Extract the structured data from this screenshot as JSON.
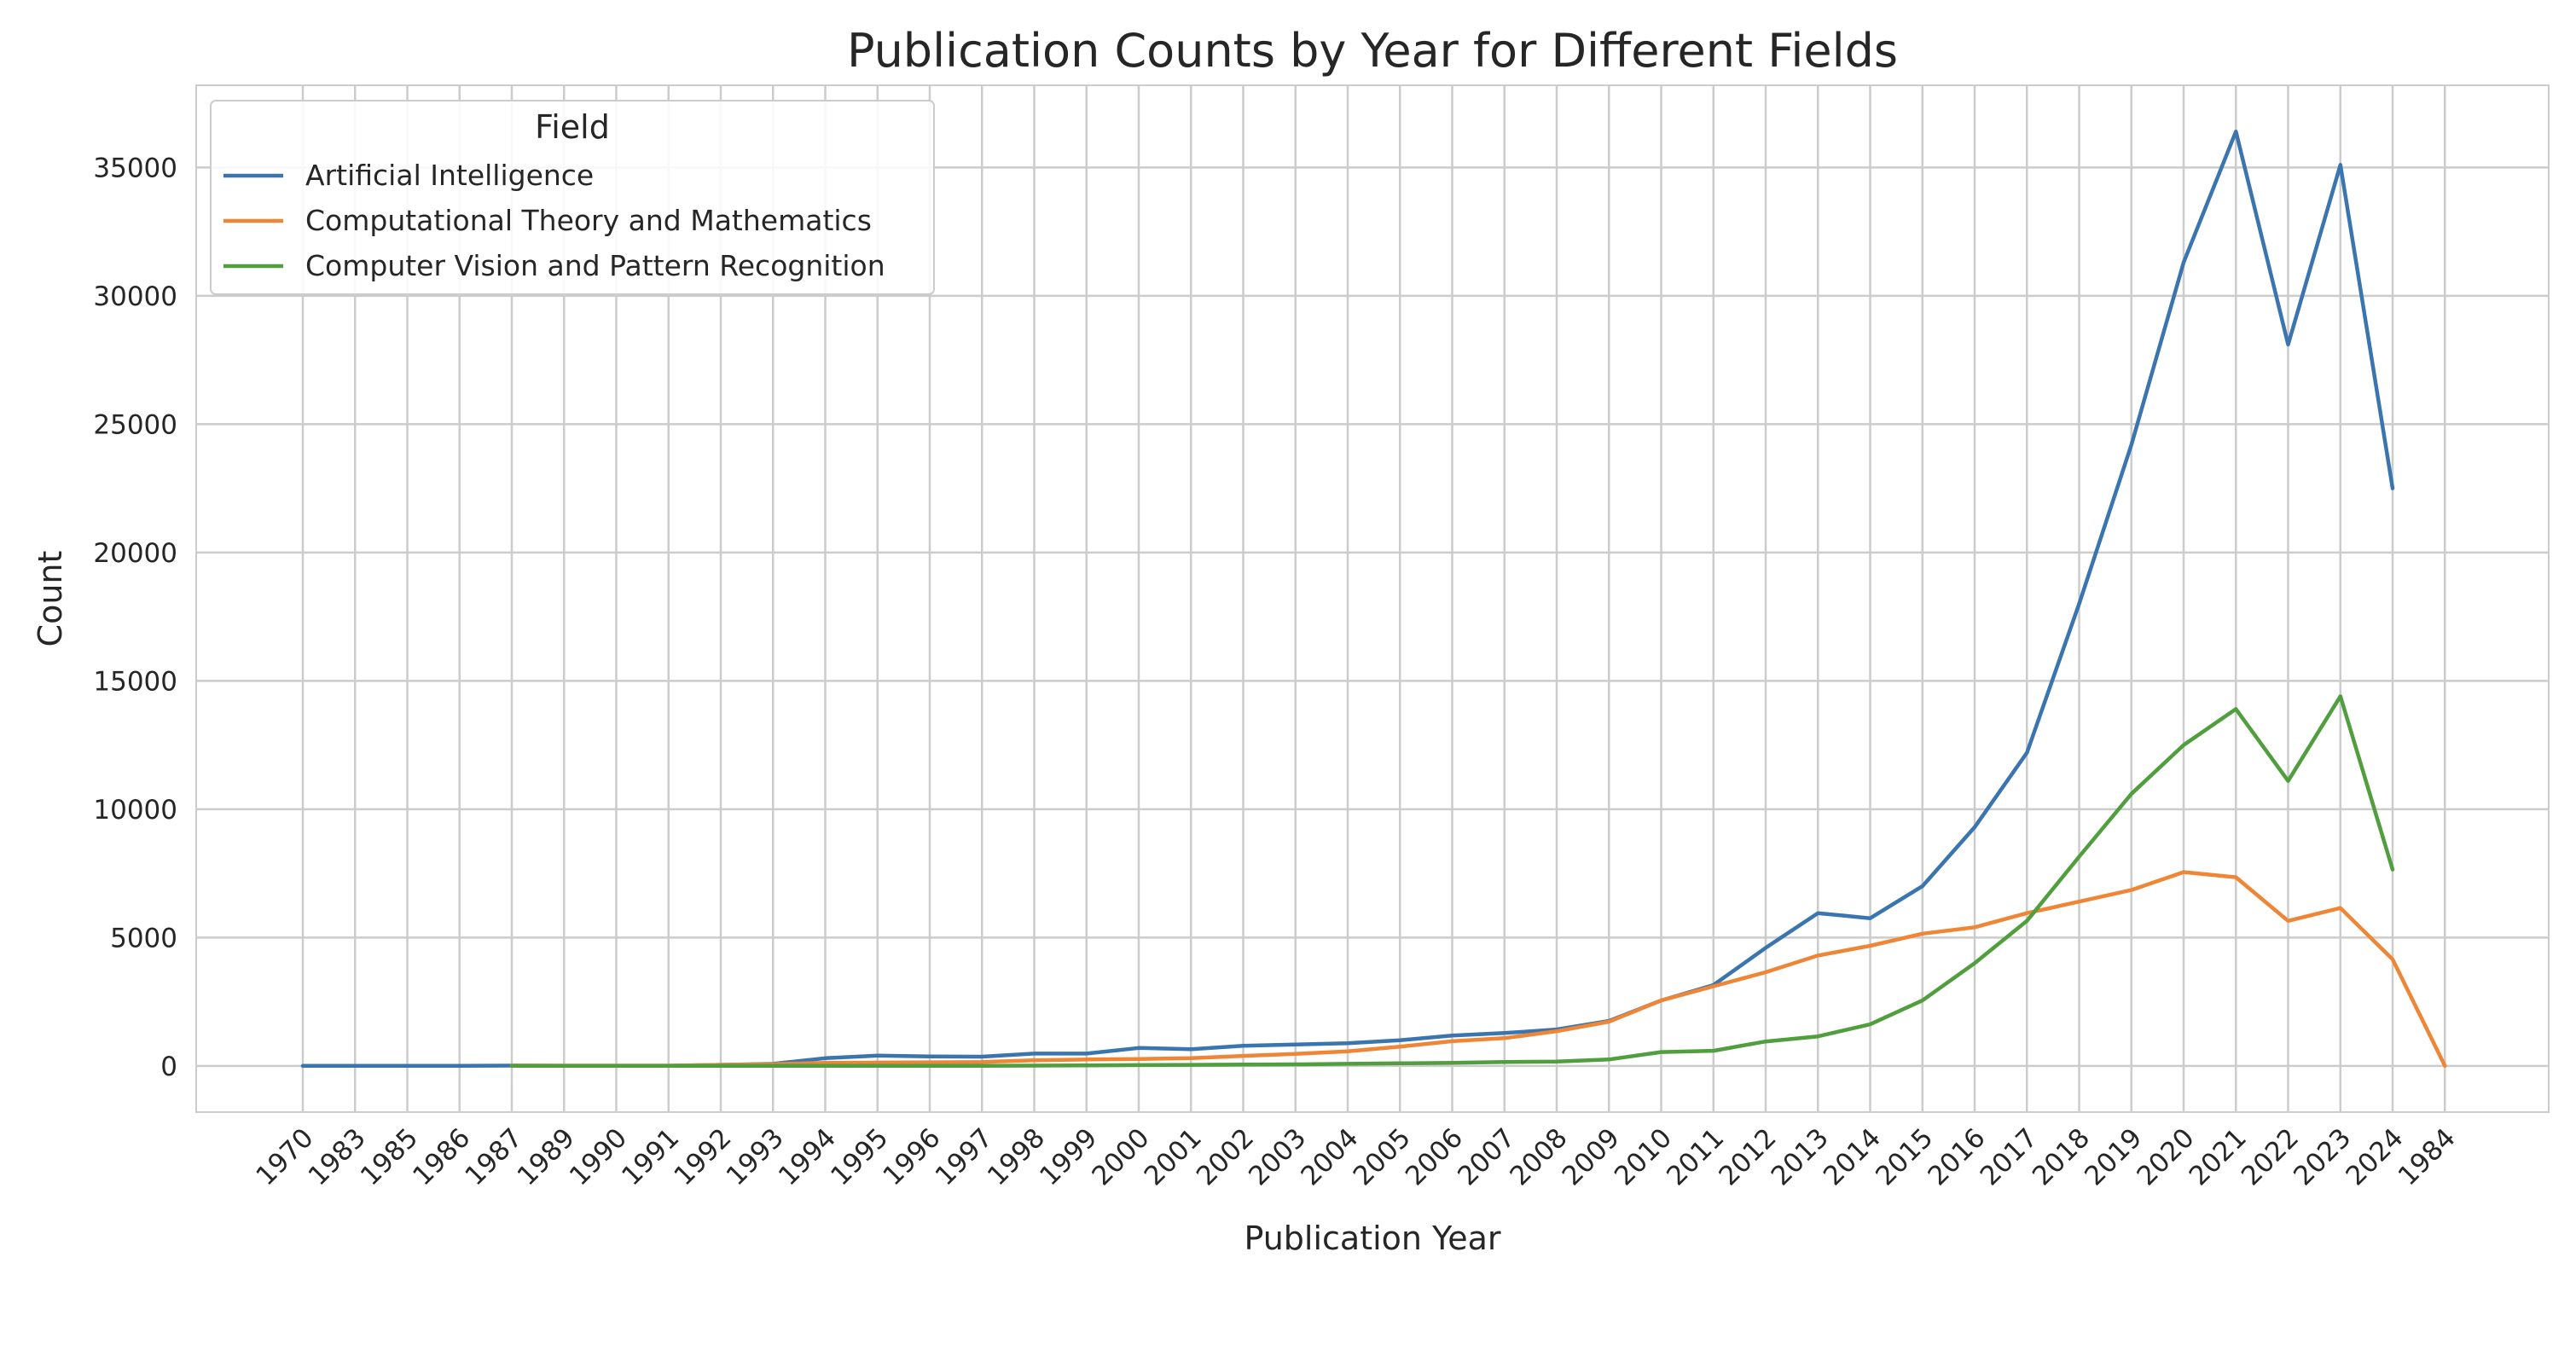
{
  "chart_data": {
    "type": "line",
    "title": "Publication Counts by Year for Different Fields",
    "xlabel": "Publication Year",
    "ylabel": "Count",
    "ylim": [
      -1800,
      38200
    ],
    "yticks": [
      0,
      5000,
      10000,
      15000,
      20000,
      25000,
      30000,
      35000
    ],
    "grid": true,
    "legend": {
      "title": "Field",
      "placement": "top-left"
    },
    "categories": [
      "1970",
      "1983",
      "1985",
      "1986",
      "1987",
      "1989",
      "1990",
      "1991",
      "1992",
      "1993",
      "1994",
      "1995",
      "1996",
      "1997",
      "1998",
      "1999",
      "2000",
      "2001",
      "2002",
      "2003",
      "2004",
      "2005",
      "2006",
      "2007",
      "2008",
      "2009",
      "2010",
      "2011",
      "2012",
      "2013",
      "2014",
      "2015",
      "2016",
      "2017",
      "2018",
      "2019",
      "2020",
      "2021",
      "2022",
      "2023",
      "2024",
      "1984"
    ],
    "series": [
      {
        "name": "Artificial Intelligence",
        "color": "#3a75af",
        "values": [
          0,
          0,
          0,
          0,
          10,
          5,
          5,
          5,
          40,
          80,
          300,
          400,
          370,
          360,
          480,
          480,
          700,
          650,
          780,
          830,
          880,
          1000,
          1180,
          1280,
          1420,
          1750,
          2550,
          3150,
          4600,
          5950,
          5750,
          7000,
          9300,
          12200,
          18000,
          24200,
          31300,
          36400,
          28100,
          35100,
          22500,
          null
        ]
      },
      {
        "name": "Computational Theory and Mathematics",
        "color": "#ef8636",
        "values": [
          null,
          null,
          null,
          null,
          10,
          10,
          10,
          10,
          40,
          70,
          120,
          130,
          140,
          150,
          220,
          250,
          270,
          300,
          390,
          470,
          570,
          750,
          960,
          1080,
          1350,
          1720,
          2550,
          3100,
          3650,
          4300,
          4680,
          5150,
          5400,
          5950,
          6400,
          6850,
          7550,
          7350,
          5650,
          6150,
          4150,
          0
        ]
      },
      {
        "name": "Computer Vision and Pattern Recognition",
        "color": "#519e3e",
        "values": [
          null,
          null,
          null,
          null,
          0,
          0,
          0,
          0,
          0,
          0,
          0,
          0,
          0,
          0,
          10,
          20,
          30,
          40,
          50,
          60,
          80,
          100,
          120,
          150,
          170,
          250,
          540,
          590,
          950,
          1150,
          1620,
          2550,
          4000,
          5650,
          8150,
          10600,
          12500,
          13900,
          11100,
          14400,
          7650,
          null
        ]
      }
    ]
  }
}
